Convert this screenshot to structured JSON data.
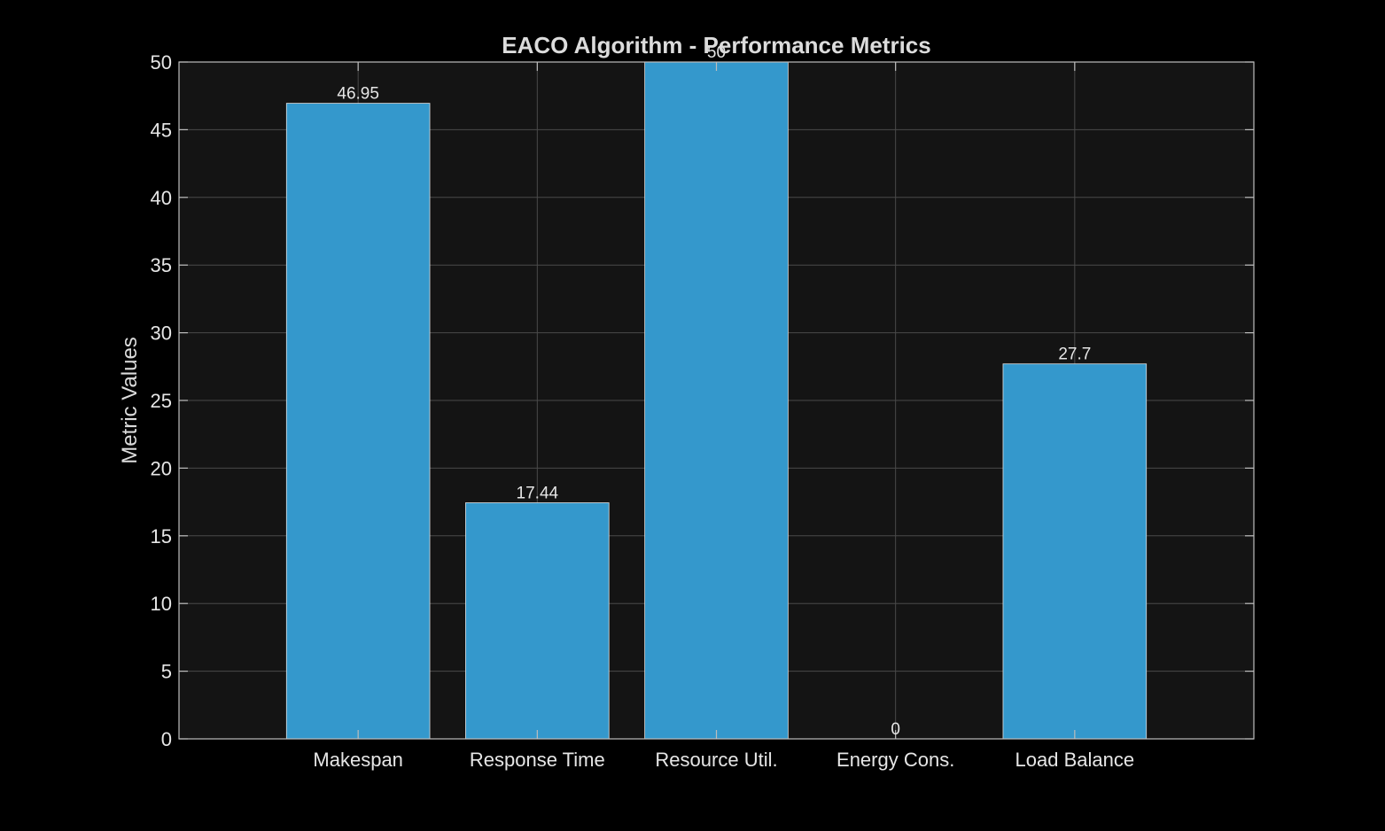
{
  "chart_data": {
    "type": "bar",
    "title": "EACO Algorithm - Performance Metrics",
    "xlabel": "",
    "ylabel": "Metric Values",
    "categories": [
      "Makespan",
      "Response Time",
      "Resource Util.",
      "Energy Cons.",
      "Load Balance"
    ],
    "values": [
      46.95,
      17.44,
      50,
      0,
      27.7
    ],
    "value_labels": [
      "46.95",
      "17.44",
      "50",
      "0",
      "27.7"
    ],
    "ylim": [
      0,
      50
    ],
    "yticks": [
      0,
      5,
      10,
      15,
      20,
      25,
      30,
      35,
      40,
      45,
      50
    ],
    "grid": true,
    "legend": "none",
    "colors": {
      "figure_bg": "#000000",
      "axes_bg": "#141414",
      "bar": "#3498cc",
      "bar_edge": "#e0e0e0",
      "grid": "#4a4a4a",
      "text": "#dcdcdc"
    }
  }
}
